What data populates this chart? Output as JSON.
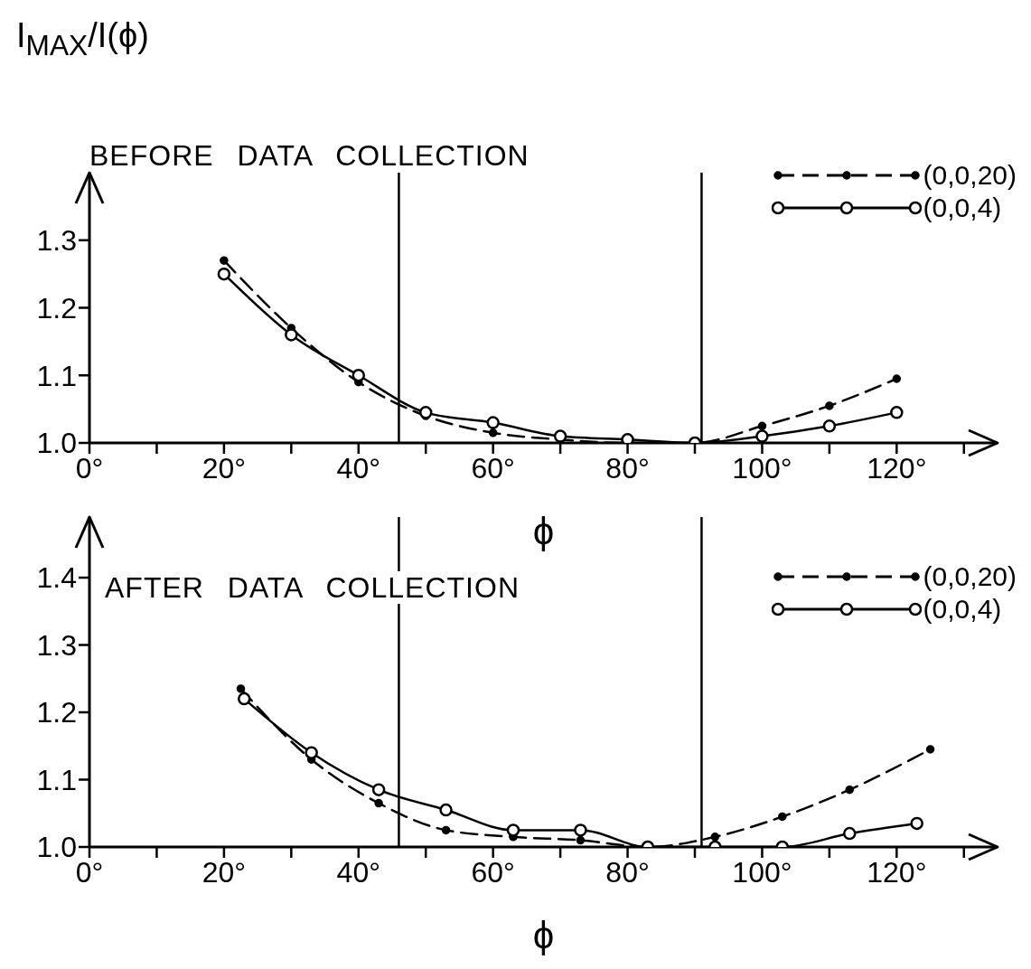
{
  "chart_data": [
    {
      "type": "line",
      "title": "BEFORE DATA COLLECTION",
      "xlabel": "ϕ",
      "ylabel": "I$_{MAX}$/I(ϕ)",
      "x": [
        20,
        30,
        40,
        50,
        60,
        70,
        80,
        90,
        100,
        110,
        120
      ],
      "series": [
        {
          "name": "(0,0,20)",
          "color": "#000000",
          "line_style": "dashed",
          "values": [
            1.27,
            1.17,
            1.09,
            1.04,
            1.015,
            1.005,
            1.0,
            1.0,
            1.025,
            1.055,
            1.095
          ]
        },
        {
          "name": "(0,0,4)",
          "color": "#000000",
          "line_style": "solid",
          "values": [
            1.25,
            1.16,
            1.1,
            1.045,
            1.03,
            1.01,
            1.005,
            1.0,
            1.01,
            1.025,
            1.045
          ]
        }
      ],
      "xlim": [
        0,
        135
      ],
      "xticks": [
        {
          "value": 0,
          "label": "0°"
        },
        {
          "value": 10,
          "label": null
        },
        {
          "value": 20,
          "label": "20°"
        },
        {
          "value": 30,
          "label": null
        },
        {
          "value": 40,
          "label": "40°"
        },
        {
          "value": 50,
          "label": null
        },
        {
          "value": 60,
          "label": "60°"
        },
        {
          "value": 70,
          "label": null
        },
        {
          "value": 80,
          "label": "80°"
        },
        {
          "value": 90,
          "label": null
        },
        {
          "value": 100,
          "label": "100°"
        },
        {
          "value": 110,
          "label": null
        },
        {
          "value": 120,
          "label": "120°"
        },
        {
          "value": 130,
          "label": null
        }
      ],
      "ylim": [
        1.0,
        1.4
      ],
      "yticks": [
        {
          "value": 1,
          "label": "1.0"
        },
        1.1,
        1.2,
        1.3
      ],
      "ref_lines": [
        {
          "axis": "x",
          "value": 46,
          "color": "#000000"
        },
        {
          "axis": "x",
          "value": 91,
          "color": "#000000"
        }
      ],
      "legend": "top right",
      "marker": "circle"
    },
    {
      "type": "line",
      "title": "AFTER DATA COLLECTION",
      "xlabel": "ϕ",
      "series": [
        {
          "name": "(0,0,20)",
          "color": "#000000",
          "line_style": "dashed",
          "x": [
            22.5,
            33,
            43,
            53,
            63,
            73,
            83,
            93,
            103,
            113,
            125
          ],
          "values": [
            1.235,
            1.13,
            1.065,
            1.025,
            1.015,
            1.01,
            1.0,
            1.015,
            1.045,
            1.085,
            1.145
          ]
        },
        {
          "name": "(0,0,4)",
          "color": "#000000",
          "line_style": "solid",
          "x": [
            23,
            33,
            43,
            53,
            63,
            73,
            83,
            93,
            103,
            113,
            123
          ],
          "values": [
            1.22,
            1.14,
            1.085,
            1.055,
            1.025,
            1.025,
            1.0,
            1.0,
            1.0,
            1.02,
            1.035
          ]
        }
      ],
      "xlim": [
        0,
        135
      ],
      "xticks": [
        {
          "value": 0,
          "label": "0°"
        },
        {
          "value": 10,
          "label": null
        },
        {
          "value": 20,
          "label": "20°"
        },
        {
          "value": 30,
          "label": null
        },
        {
          "value": 40,
          "label": "40°"
        },
        {
          "value": 50,
          "label": null
        },
        {
          "value": 60,
          "label": "60°"
        },
        {
          "value": 70,
          "label": null
        },
        {
          "value": 80,
          "label": "80°"
        },
        {
          "value": 90,
          "label": null
        },
        {
          "value": 100,
          "label": "100°"
        },
        {
          "value": 110,
          "label": null
        },
        {
          "value": 120,
          "label": "120°"
        },
        {
          "value": 130,
          "label": null
        }
      ],
      "ylim": [
        1.0,
        1.49
      ],
      "yticks": [
        {
          "value": 1,
          "label": "1.0"
        },
        1.1,
        1.2,
        1.3,
        1.4
      ],
      "ref_lines": [
        {
          "axis": "x",
          "value": 46,
          "color": "#000000"
        },
        {
          "axis": "x",
          "value": 91,
          "color": "#000000"
        }
      ],
      "legend": "top right",
      "marker": "circle"
    }
  ]
}
